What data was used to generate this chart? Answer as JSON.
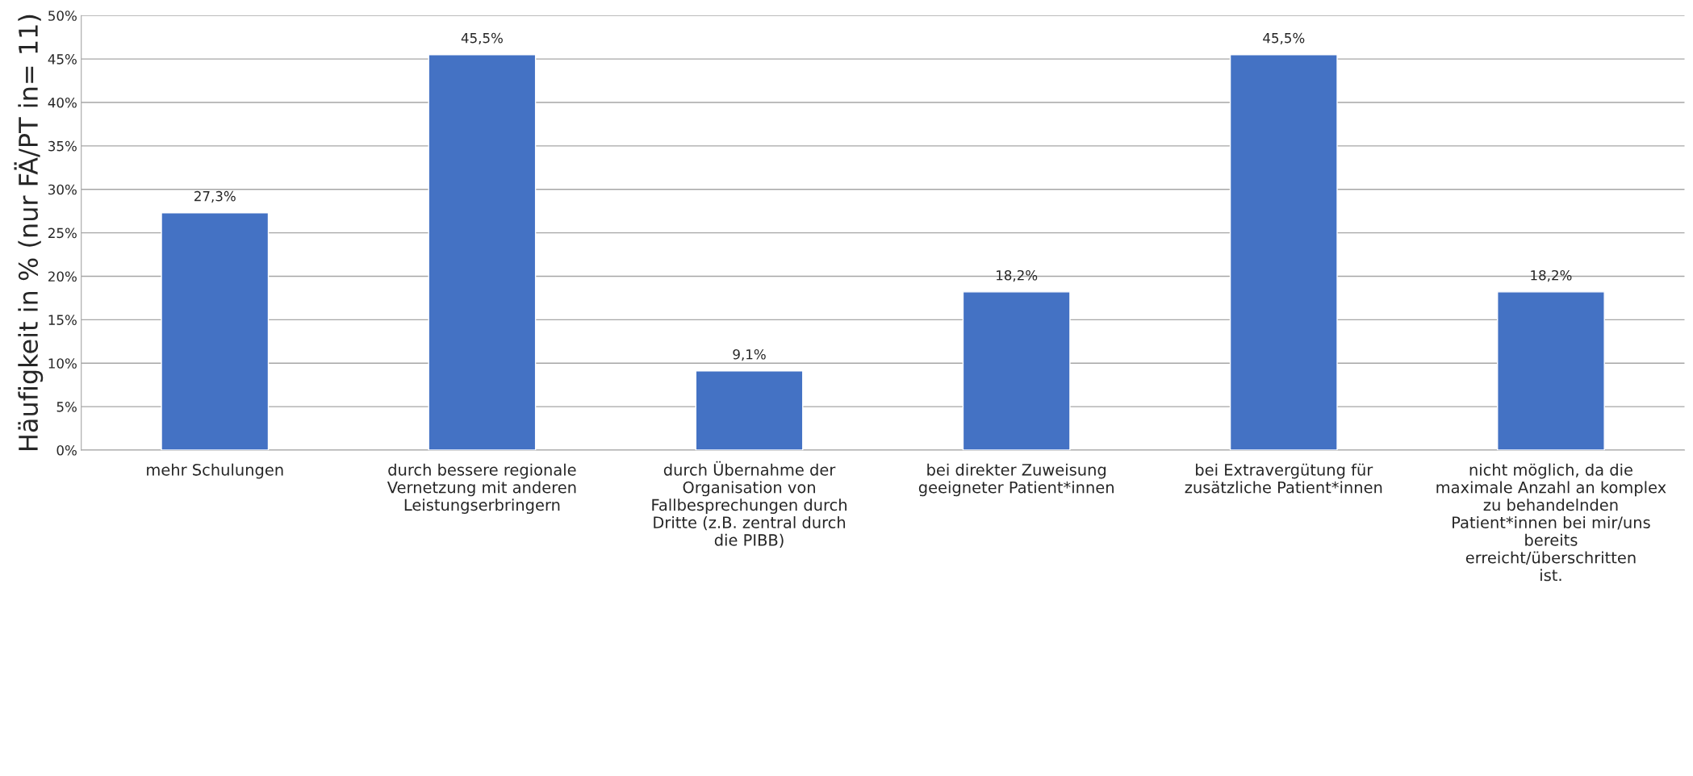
{
  "chart_data": {
    "type": "bar",
    "ylabel": "Häufigkeit in % (nur FÄ/PT in= 11)",
    "categories": [
      "mehr Schulungen",
      "durch bessere regionale Vernetzung mit anderen Leistungserbringern",
      "durch Übernahme der Organisation von Fallbesprechungen durch Dritte (z.B. zentral durch die PIBB)",
      "bei direkter Zuweisung geeigneter Patient*innen",
      "bei Extravergütung für zusätzliche Patient*innen",
      "nicht möglich, da die maximale Anzahl an komplex zu behandelnden Patient*innen bei mir/uns bereits erreicht/überschritten ist."
    ],
    "values": [
      27.3,
      45.5,
      9.1,
      18.2,
      45.5,
      18.2
    ],
    "value_labels": [
      "27,3%",
      "45,5%",
      "9,1%",
      "18,2%",
      "45,5%",
      "18,2%"
    ],
    "color": "#4472c4",
    "ylim": [
      0,
      50
    ],
    "yticks": [
      {
        "value": 0,
        "label": "0%"
      },
      {
        "value": 5,
        "label": "5%"
      },
      {
        "value": 10,
        "label": "10%"
      },
      {
        "value": 15,
        "label": "15%"
      },
      {
        "value": 20,
        "label": "20%"
      },
      {
        "value": 25,
        "label": "25%"
      },
      {
        "value": 30,
        "label": "30%"
      },
      {
        "value": 35,
        "label": "35%"
      },
      {
        "value": 40,
        "label": "40%"
      },
      {
        "value": 45,
        "label": "45%"
      },
      {
        "value": 50,
        "label": "50%"
      }
    ],
    "grid": "y",
    "legend": false
  }
}
